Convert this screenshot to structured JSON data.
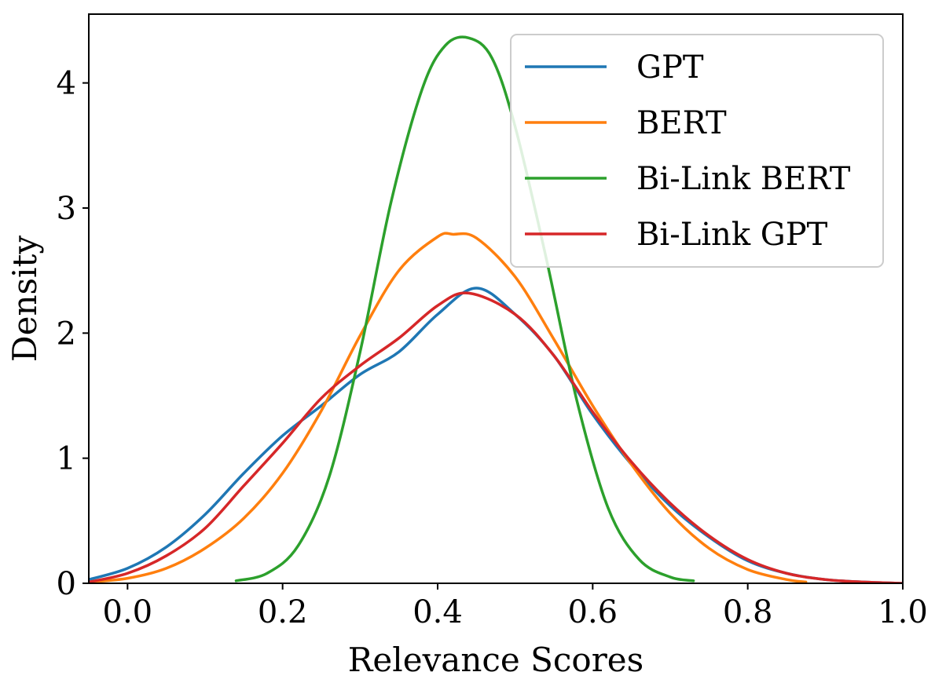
{
  "chart_data": {
    "type": "line",
    "title": "",
    "xlabel": "Relevance Scores",
    "ylabel": "Density",
    "xlim": [
      -0.05,
      1.0
    ],
    "ylim": [
      0,
      4.55
    ],
    "xticks": [
      0.0,
      0.2,
      0.4,
      0.6,
      0.8,
      1.0
    ],
    "xtick_labels": [
      "0.0",
      "0.2",
      "0.4",
      "0.6",
      "0.8",
      "1.0"
    ],
    "yticks": [
      0,
      1,
      2,
      3,
      4
    ],
    "ytick_labels": [
      "0",
      "1",
      "2",
      "3",
      "4"
    ],
    "grid": false,
    "legend_position": "top-right",
    "series": [
      {
        "name": "GPT",
        "color": "#1f77b4",
        "x": [
          -0.05,
          0.0,
          0.05,
          0.1,
          0.15,
          0.2,
          0.25,
          0.3,
          0.35,
          0.4,
          0.45,
          0.5,
          0.55,
          0.6,
          0.65,
          0.7,
          0.75,
          0.8,
          0.85,
          0.9,
          0.95,
          1.0
        ],
        "y": [
          0.03,
          0.12,
          0.29,
          0.55,
          0.88,
          1.18,
          1.42,
          1.67,
          1.85,
          2.15,
          2.36,
          2.15,
          1.82,
          1.35,
          0.95,
          0.62,
          0.37,
          0.18,
          0.08,
          0.03,
          0.01,
          0.0
        ]
      },
      {
        "name": "BERT",
        "color": "#ff7f0e",
        "x": [
          -0.05,
          0.0,
          0.05,
          0.1,
          0.15,
          0.2,
          0.25,
          0.3,
          0.35,
          0.4,
          0.42,
          0.45,
          0.5,
          0.55,
          0.6,
          0.65,
          0.7,
          0.75,
          0.8,
          0.85,
          0.875
        ],
        "y": [
          0.01,
          0.04,
          0.12,
          0.28,
          0.52,
          0.88,
          1.38,
          1.98,
          2.5,
          2.77,
          2.79,
          2.76,
          2.45,
          1.95,
          1.42,
          0.95,
          0.56,
          0.28,
          0.11,
          0.03,
          0.01
        ]
      },
      {
        "name": "Bi-Link BERT",
        "color": "#2ca02c",
        "x": [
          0.14,
          0.18,
          0.22,
          0.26,
          0.3,
          0.34,
          0.38,
          0.41,
          0.44,
          0.47,
          0.5,
          0.54,
          0.58,
          0.62,
          0.66,
          0.7,
          0.73
        ],
        "y": [
          0.02,
          0.08,
          0.3,
          0.85,
          1.85,
          3.05,
          3.95,
          4.3,
          4.36,
          4.2,
          3.65,
          2.6,
          1.45,
          0.6,
          0.19,
          0.05,
          0.02
        ]
      },
      {
        "name": "Bi-Link GPT",
        "color": "#d62728",
        "x": [
          -0.05,
          0.0,
          0.05,
          0.1,
          0.15,
          0.2,
          0.25,
          0.3,
          0.35,
          0.4,
          0.44,
          0.5,
          0.55,
          0.6,
          0.65,
          0.7,
          0.75,
          0.8,
          0.85,
          0.9,
          0.95,
          1.0
        ],
        "y": [
          0.01,
          0.08,
          0.22,
          0.44,
          0.78,
          1.12,
          1.48,
          1.74,
          1.96,
          2.22,
          2.32,
          2.15,
          1.82,
          1.37,
          0.97,
          0.64,
          0.38,
          0.19,
          0.08,
          0.03,
          0.01,
          0.0
        ]
      }
    ]
  }
}
